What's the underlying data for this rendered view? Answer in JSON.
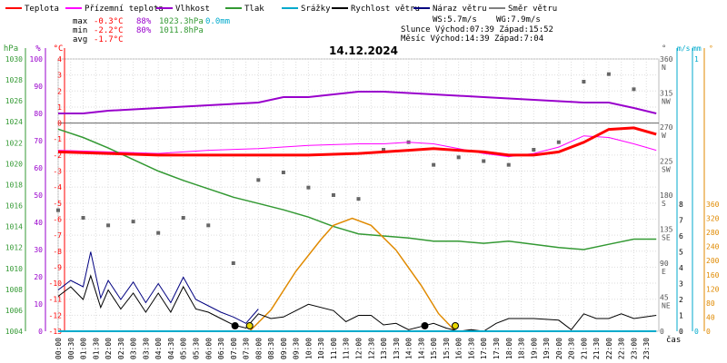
{
  "chart_data": {
    "type": "line",
    "title": "14.12.2024",
    "x_axis_label": "čas",
    "x_ticks": [
      "00:00",
      "00:30",
      "01:00",
      "01:30",
      "02:00",
      "02:30",
      "03:00",
      "03:30",
      "04:00",
      "04:30",
      "05:00",
      "05:30",
      "06:00",
      "06:30",
      "07:00",
      "07:30",
      "08:00",
      "08:30",
      "09:00",
      "09:30",
      "10:00",
      "10:30",
      "11:00",
      "11:30",
      "12:00",
      "12:30",
      "13:00",
      "13:30",
      "14:00",
      "14:30",
      "15:00",
      "15:30",
      "16:00",
      "16:30",
      "17:00",
      "17:30",
      "18:00",
      "18:30",
      "19:00",
      "19:30",
      "20:00",
      "20:30",
      "21:00",
      "21:30",
      "22:00",
      "22:30",
      "23:00",
      "23:30"
    ],
    "legend": [
      {
        "name": "Teplota",
        "color": "#ff0000"
      },
      {
        "name": "Přízemní teplota",
        "color": "#ff00ff"
      },
      {
        "name": "Vlhkost",
        "color": "#9900cc"
      },
      {
        "name": "Tlak",
        "color": "#339933"
      },
      {
        "name": "Srážky",
        "color": "#00aacc"
      },
      {
        "name": "Rychlost větru",
        "color": "#000000"
      },
      {
        "name": "Náraz větru",
        "color": "#000080"
      },
      {
        "name": "Směr větru",
        "color": "#808080"
      }
    ],
    "stats": {
      "max_label": "max",
      "max_temp": "-0.3°C",
      "max_hum": "88%",
      "max_press": "1023.3hPa",
      "max_rain": "0.0mm",
      "min_label": "min",
      "min_temp": "-2.2°C",
      "min_hum": "80%",
      "min_press": "1011.8hPa",
      "avg_label": "avg",
      "avg_temp": "-1.7°C",
      "ws": "WS:5.7m/s",
      "wg": "WG:7.9m/s",
      "sun": "Slunce Východ:07:39  Západ:15:52",
      "moon": "Měsíc  Východ:14:39  Západ:7:04"
    },
    "axes": {
      "pressure": {
        "unit": "hPa",
        "min": 1004,
        "max": 1030,
        "ticks": [
          "1030",
          "1028",
          "1026",
          "1024",
          "1022",
          "1020",
          "1018",
          "1016",
          "1014",
          "1012",
          "1010",
          "1008",
          "1006",
          "1004"
        ]
      },
      "humidity": {
        "unit": "%",
        "min": 0,
        "max": 100,
        "ticks": [
          "100",
          "90",
          "80",
          "70",
          "60",
          "50",
          "40",
          "30",
          "20",
          "10",
          "0"
        ]
      },
      "temperature": {
        "unit": "°C",
        "min": -13,
        "max": 4,
        "ticks": [
          "4",
          "3",
          "2",
          "1",
          "0",
          "-1",
          "-2",
          "-3",
          "-4",
          "-5",
          "-6",
          "-7",
          "-8",
          "-9",
          "-10",
          "-11",
          "-12",
          "-13"
        ]
      },
      "direction": {
        "unit": "°",
        "ticks": [
          "360",
          "315",
          "270",
          "225",
          "180",
          "135",
          "90",
          "45",
          "0"
        ],
        "compass": [
          "N",
          "NW",
          "W",
          "SW",
          "S",
          "SE",
          "E",
          "NE"
        ]
      },
      "wind_speed": {
        "unit": "m/s",
        "ticks": [
          "8",
          "7",
          "6",
          "5",
          "4",
          "3",
          "2",
          "1",
          "0"
        ]
      },
      "rain": {
        "unit": "mm",
        "ticks": [
          "1",
          "0"
        ]
      },
      "sun_angle": {
        "unit": "°",
        "ticks": [
          "360",
          "320",
          "280",
          "240",
          "200",
          "160",
          "120",
          "80",
          "40",
          "0"
        ]
      }
    },
    "series": [
      {
        "name": "Teplota",
        "unit": "°C",
        "x": [
          0,
          2,
          4,
          6,
          8,
          10,
          12,
          13,
          14,
          15,
          16,
          17,
          18,
          19,
          20,
          21,
          22,
          23,
          23.9
        ],
        "values": [
          -1.8,
          -1.9,
          -2.0,
          -2.0,
          -2.0,
          -2.0,
          -1.9,
          -1.8,
          -1.7,
          -1.6,
          -1.7,
          -1.8,
          -2.0,
          -2.0,
          -1.8,
          -1.2,
          -0.4,
          -0.3,
          -0.7
        ]
      },
      {
        "name": "Přízemní teplota",
        "unit": "°C",
        "x": [
          0,
          2,
          4,
          6,
          8,
          10,
          12,
          13,
          14,
          15,
          16,
          17,
          18,
          19,
          20,
          21,
          22,
          23,
          23.9
        ],
        "values": [
          -1.7,
          -1.8,
          -1.9,
          -1.7,
          -1.6,
          -1.4,
          -1.3,
          -1.3,
          -1.2,
          -1.3,
          -1.6,
          -1.9,
          -2.1,
          -1.9,
          -1.5,
          -0.8,
          -0.9,
          -1.3,
          -1.7
        ]
      },
      {
        "name": "Vlhkost",
        "unit": "%",
        "x": [
          0,
          1,
          2,
          4,
          6,
          8,
          9,
          10,
          11,
          12,
          13,
          15,
          17,
          19,
          21,
          22,
          23,
          23.9
        ],
        "values": [
          80,
          80,
          81,
          82,
          83,
          84,
          86,
          86,
          87,
          88,
          88,
          87,
          86,
          85,
          84,
          84,
          82,
          80
        ]
      },
      {
        "name": "Tlak",
        "unit": "hPa",
        "x": [
          0,
          1,
          2,
          3,
          4,
          5,
          6,
          7,
          8,
          9,
          10,
          11,
          12,
          13,
          14,
          15,
          16,
          17,
          18,
          19,
          20,
          21,
          22,
          23,
          23.9
        ],
        "values": [
          1023.3,
          1022.5,
          1021.5,
          1020.4,
          1019.3,
          1018.4,
          1017.6,
          1016.8,
          1016.2,
          1015.6,
          1014.9,
          1014.0,
          1013.3,
          1013.1,
          1012.9,
          1012.6,
          1012.6,
          1012.4,
          1012.6,
          1012.3,
          1012.0,
          1011.8,
          1012.3,
          1012.8,
          1012.8
        ]
      },
      {
        "name": "Srážky",
        "unit": "mm",
        "x": [
          0,
          23.9
        ],
        "values": [
          0,
          0
        ]
      },
      {
        "name": "Rychlost větru",
        "unit": "m/s",
        "x": [
          0,
          0.5,
          1,
          1.3,
          1.7,
          2,
          2.5,
          3,
          3.5,
          4,
          4.5,
          5,
          5.5,
          6,
          6.5,
          7,
          7.5,
          8,
          8.5,
          9,
          10,
          11,
          11.5,
          12,
          12.5,
          13,
          13.5,
          14,
          14.5,
          15,
          15.5,
          16,
          16.5,
          17,
          17.5,
          18,
          18.5,
          19,
          20,
          20.5,
          21,
          21.5,
          22,
          22.5,
          23,
          23.9
        ],
        "values": [
          2.2,
          2.8,
          2.0,
          3.5,
          1.5,
          2.6,
          1.4,
          2.4,
          1.2,
          2.4,
          1.2,
          2.8,
          1.4,
          1.2,
          0.8,
          0.4,
          0.2,
          1.1,
          0.8,
          0.9,
          1.7,
          1.3,
          0.6,
          1.0,
          1.0,
          0.4,
          0.5,
          0.1,
          0.3,
          0.5,
          0.2,
          0.0,
          0.1,
          0.0,
          0.5,
          0.8,
          0.8,
          0.8,
          0.7,
          0.1,
          1.1,
          0.8,
          0.8,
          1.1,
          0.8,
          1.0
        ]
      },
      {
        "name": "Náraz větru",
        "unit": "m/s",
        "x": [
          0,
          0.5,
          1,
          1.3,
          1.7,
          2,
          2.5,
          3,
          3.5,
          4,
          4.5,
          5,
          5.5,
          6,
          6.5,
          7,
          7.5,
          8
        ],
        "values": [
          2.6,
          3.2,
          2.8,
          5.0,
          2.1,
          3.2,
          2.0,
          3.1,
          1.8,
          3.0,
          1.8,
          3.4,
          2.0,
          1.6,
          1.2,
          0.9,
          0.5,
          1.4
        ]
      },
      {
        "name": "Směr větru",
        "unit": "°",
        "x": [
          0,
          1,
          2,
          3,
          4,
          5,
          6,
          7,
          8,
          9,
          10,
          11,
          12,
          13,
          14,
          15,
          16,
          17,
          18,
          19,
          20,
          21,
          22,
          23
        ],
        "values": [
          160,
          150,
          140,
          145,
          130,
          150,
          140,
          90,
          200,
          210,
          190,
          180,
          175,
          240,
          250,
          220,
          230,
          225,
          220,
          240,
          250,
          330,
          340,
          320
        ]
      },
      {
        "name": "Sluneční výška",
        "unit": "°",
        "x": [
          7.65,
          8.5,
          9.5,
          10.5,
          11,
          11.75,
          12.5,
          13.5,
          14.5,
          15.2,
          15.87
        ],
        "values": [
          0,
          60,
          170,
          260,
          300,
          320,
          300,
          230,
          130,
          50,
          0
        ]
      }
    ],
    "markers": [
      {
        "type": "sunrise",
        "time": "07:39",
        "color": "#e8d800"
      },
      {
        "type": "moonset",
        "time": "7:04",
        "color": "#000000"
      },
      {
        "type": "moonrise",
        "time": "14:39",
        "color": "#000000"
      },
      {
        "type": "sunset",
        "time": "15:52",
        "color": "#e8d800"
      }
    ]
  }
}
